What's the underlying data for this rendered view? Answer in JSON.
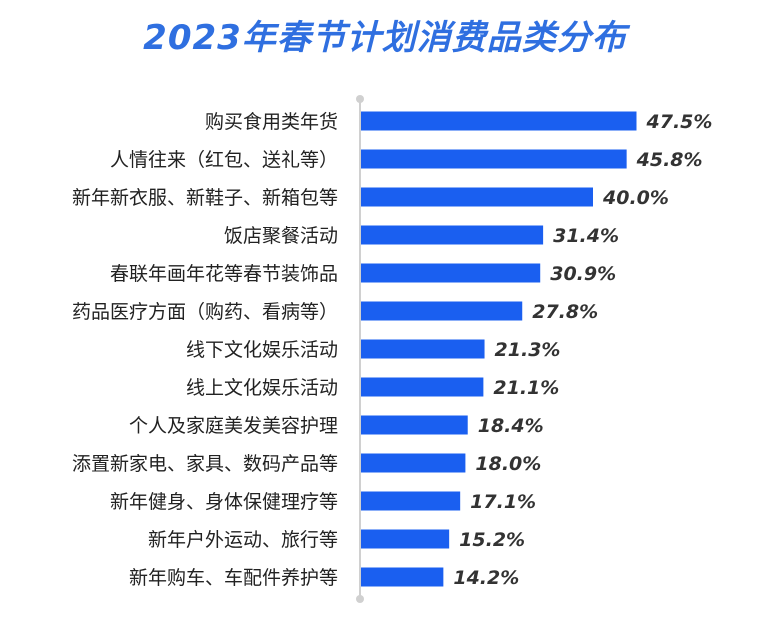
{
  "chart_data": {
    "type": "bar",
    "orientation": "horizontal",
    "title": "2023年春节计划消费品类分布",
    "categories": [
      "购买食用类年货",
      "人情往来（红包、送礼等）",
      "新年新衣服、新鞋子、新箱包等",
      "饭店聚餐活动",
      "春联年画年花等春节装饰品",
      "药品医疗方面（购药、看病等）",
      "线下文化娱乐活动",
      "线上文化娱乐活动",
      "个人及家庭美发美容护理",
      "添置新家电、家具、数码产品等",
      "新年健身、身体保健理疗等",
      "新年户外运动、旅行等",
      "新年购车、车配件养护等"
    ],
    "values": [
      47.5,
      45.8,
      40.0,
      31.4,
      30.9,
      27.8,
      21.3,
      21.1,
      18.4,
      18.0,
      17.1,
      15.2,
      14.2
    ],
    "value_labels": [
      "47.5%",
      "45.8%",
      "40.0%",
      "31.4%",
      "30.9%",
      "27.8%",
      "21.3%",
      "21.1%",
      "18.4%",
      "18.0%",
      "17.1%",
      "15.2%",
      "14.2%"
    ],
    "unit": "%",
    "xlim": [
      0,
      50
    ],
    "grid": false,
    "legend": "none",
    "colors": {
      "bar": "#1a5ff0",
      "title": "#2f6fe0",
      "axis": "#d0d0d0"
    }
  }
}
